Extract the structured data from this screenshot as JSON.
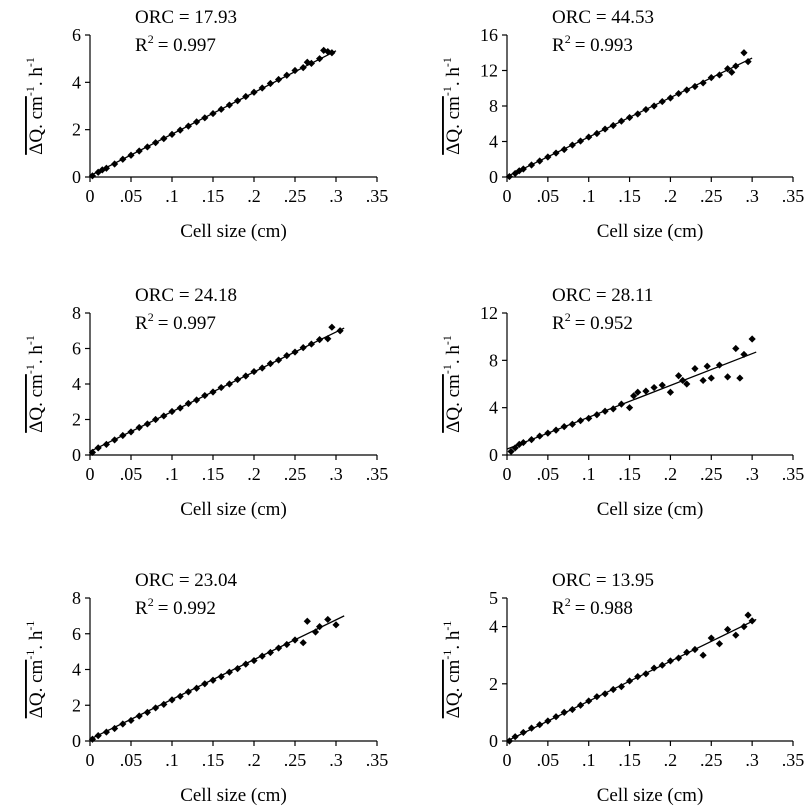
{
  "figure": {
    "xlabel": "Cell size (cm)",
    "ylabel_main": "ΔQ. cm",
    "ylabel_sup1": "-1",
    "ylabel_mid": ". h",
    "ylabel_sup2": "-1",
    "x_ticks": [
      "0",
      ".05",
      ".1",
      ".15",
      ".2",
      ".25",
      ".3",
      ".35"
    ],
    "x_tick_values": [
      0,
      0.05,
      0.1,
      0.15,
      0.2,
      0.25,
      0.3,
      0.35
    ],
    "marker": "diamond",
    "marker_color": "#000000",
    "line_color": "#000000"
  },
  "chart_data": [
    {
      "type": "scatter",
      "orc_text": "ORC = 17.93",
      "r2_text": "= 0.997",
      "xlim": [
        0,
        0.35
      ],
      "ylim": [
        0,
        6
      ],
      "y_ticks": [
        "0",
        "2",
        "4",
        "6"
      ],
      "y_tick_values": [
        0,
        2,
        4,
        6
      ],
      "fit": {
        "x": [
          0,
          0.3
        ],
        "y": [
          0.05,
          5.33
        ]
      },
      "points": [
        [
          0.003,
          0.05
        ],
        [
          0.01,
          0.2
        ],
        [
          0.015,
          0.3
        ],
        [
          0.02,
          0.37
        ],
        [
          0.03,
          0.55
        ],
        [
          0.04,
          0.75
        ],
        [
          0.05,
          0.92
        ],
        [
          0.06,
          1.1
        ],
        [
          0.07,
          1.27
        ],
        [
          0.08,
          1.45
        ],
        [
          0.09,
          1.62
        ],
        [
          0.1,
          1.8
        ],
        [
          0.11,
          1.98
        ],
        [
          0.12,
          2.15
        ],
        [
          0.13,
          2.33
        ],
        [
          0.14,
          2.5
        ],
        [
          0.15,
          2.68
        ],
        [
          0.16,
          2.86
        ],
        [
          0.17,
          3.04
        ],
        [
          0.18,
          3.22
        ],
        [
          0.19,
          3.4
        ],
        [
          0.2,
          3.58
        ],
        [
          0.21,
          3.76
        ],
        [
          0.22,
          3.95
        ],
        [
          0.23,
          4.12
        ],
        [
          0.24,
          4.3
        ],
        [
          0.25,
          4.5
        ],
        [
          0.26,
          4.62
        ],
        [
          0.265,
          4.85
        ],
        [
          0.27,
          4.8
        ],
        [
          0.28,
          5.0
        ],
        [
          0.285,
          5.35
        ],
        [
          0.29,
          5.3
        ],
        [
          0.295,
          5.25
        ]
      ]
    },
    {
      "type": "scatter",
      "orc_text": "ORC = 44.53",
      "r2_text": "= 0.993",
      "xlim": [
        0,
        0.35
      ],
      "ylim": [
        0,
        16
      ],
      "y_ticks": [
        "0",
        "4",
        "8",
        "12",
        "16"
      ],
      "y_tick_values": [
        0,
        4,
        8,
        12,
        16
      ],
      "fit": {
        "x": [
          0,
          0.3
        ],
        "y": [
          0.05,
          13.4
        ]
      },
      "points": [
        [
          0.003,
          0.05
        ],
        [
          0.01,
          0.4
        ],
        [
          0.015,
          0.7
        ],
        [
          0.02,
          0.9
        ],
        [
          0.03,
          1.35
        ],
        [
          0.04,
          1.8
        ],
        [
          0.05,
          2.25
        ],
        [
          0.06,
          2.7
        ],
        [
          0.07,
          3.1
        ],
        [
          0.08,
          3.6
        ],
        [
          0.09,
          4.05
        ],
        [
          0.1,
          4.5
        ],
        [
          0.11,
          4.9
        ],
        [
          0.12,
          5.4
        ],
        [
          0.13,
          5.8
        ],
        [
          0.14,
          6.3
        ],
        [
          0.15,
          6.7
        ],
        [
          0.16,
          7.1
        ],
        [
          0.17,
          7.6
        ],
        [
          0.18,
          8.0
        ],
        [
          0.19,
          8.5
        ],
        [
          0.2,
          8.9
        ],
        [
          0.21,
          9.4
        ],
        [
          0.22,
          9.8
        ],
        [
          0.23,
          10.2
        ],
        [
          0.24,
          10.6
        ],
        [
          0.25,
          11.2
        ],
        [
          0.26,
          11.5
        ],
        [
          0.27,
          12.2
        ],
        [
          0.275,
          11.8
        ],
        [
          0.28,
          12.5
        ],
        [
          0.29,
          14.0
        ],
        [
          0.295,
          13.0
        ]
      ]
    },
    {
      "type": "scatter",
      "orc_text": "ORC = 24.18",
      "r2_text": "= 0.997",
      "xlim": [
        0,
        0.35
      ],
      "ylim": [
        0,
        8
      ],
      "y_ticks": [
        "0",
        "2",
        "4",
        "6",
        "8"
      ],
      "y_tick_values": [
        0,
        2,
        4,
        6,
        8
      ],
      "fit": {
        "x": [
          0,
          0.31
        ],
        "y": [
          0.2,
          7.15
        ]
      },
      "points": [
        [
          0.003,
          0.15
        ],
        [
          0.01,
          0.4
        ],
        [
          0.02,
          0.6
        ],
        [
          0.03,
          0.85
        ],
        [
          0.04,
          1.1
        ],
        [
          0.05,
          1.3
        ],
        [
          0.06,
          1.55
        ],
        [
          0.07,
          1.75
        ],
        [
          0.08,
          2.0
        ],
        [
          0.09,
          2.2
        ],
        [
          0.1,
          2.45
        ],
        [
          0.11,
          2.65
        ],
        [
          0.12,
          2.9
        ],
        [
          0.13,
          3.1
        ],
        [
          0.14,
          3.35
        ],
        [
          0.15,
          3.55
        ],
        [
          0.16,
          3.8
        ],
        [
          0.17,
          4.0
        ],
        [
          0.18,
          4.25
        ],
        [
          0.19,
          4.45
        ],
        [
          0.2,
          4.7
        ],
        [
          0.21,
          4.9
        ],
        [
          0.22,
          5.15
        ],
        [
          0.23,
          5.35
        ],
        [
          0.24,
          5.6
        ],
        [
          0.25,
          5.8
        ],
        [
          0.26,
          6.05
        ],
        [
          0.27,
          6.25
        ],
        [
          0.28,
          6.5
        ],
        [
          0.29,
          6.55
        ],
        [
          0.295,
          7.2
        ],
        [
          0.305,
          7.0
        ]
      ]
    },
    {
      "type": "scatter",
      "orc_text": "ORC = 28.11",
      "r2_text": "= 0.952",
      "xlim": [
        0,
        0.35
      ],
      "ylim": [
        0,
        12
      ],
      "y_ticks": [
        "0",
        "4",
        "8",
        "12"
      ],
      "y_tick_values": [
        0,
        4,
        8,
        12
      ],
      "fit": {
        "x": [
          0,
          0.305
        ],
        "y": [
          0.5,
          8.7
        ]
      },
      "points": [
        [
          0.005,
          0.3
        ],
        [
          0.01,
          0.6
        ],
        [
          0.015,
          0.9
        ],
        [
          0.02,
          1.05
        ],
        [
          0.03,
          1.3
        ],
        [
          0.04,
          1.6
        ],
        [
          0.05,
          1.85
        ],
        [
          0.06,
          2.1
        ],
        [
          0.07,
          2.4
        ],
        [
          0.08,
          2.6
        ],
        [
          0.09,
          2.9
        ],
        [
          0.1,
          3.1
        ],
        [
          0.11,
          3.4
        ],
        [
          0.12,
          3.7
        ],
        [
          0.13,
          3.9
        ],
        [
          0.14,
          4.3
        ],
        [
          0.15,
          4.0
        ],
        [
          0.155,
          5.0
        ],
        [
          0.16,
          5.3
        ],
        [
          0.17,
          5.4
        ],
        [
          0.18,
          5.7
        ],
        [
          0.19,
          5.9
        ],
        [
          0.2,
          5.3
        ],
        [
          0.21,
          6.7
        ],
        [
          0.215,
          6.3
        ],
        [
          0.22,
          6.0
        ],
        [
          0.23,
          7.3
        ],
        [
          0.24,
          6.3
        ],
        [
          0.245,
          7.5
        ],
        [
          0.25,
          6.5
        ],
        [
          0.26,
          7.6
        ],
        [
          0.27,
          6.6
        ],
        [
          0.28,
          9.0
        ],
        [
          0.285,
          6.5
        ],
        [
          0.29,
          8.5
        ],
        [
          0.3,
          9.8
        ]
      ]
    },
    {
      "type": "scatter",
      "orc_text": "ORC = 23.04",
      "r2_text": "= 0.992",
      "xlim": [
        0,
        0.35
      ],
      "ylim": [
        0,
        8
      ],
      "y_ticks": [
        "0",
        "2",
        "4",
        "6",
        "8"
      ],
      "y_tick_values": [
        0,
        2,
        4,
        6,
        8
      ],
      "fit": {
        "x": [
          0,
          0.31
        ],
        "y": [
          0.1,
          7.0
        ]
      },
      "points": [
        [
          0.003,
          0.1
        ],
        [
          0.01,
          0.3
        ],
        [
          0.02,
          0.5
        ],
        [
          0.03,
          0.7
        ],
        [
          0.04,
          0.95
        ],
        [
          0.05,
          1.15
        ],
        [
          0.06,
          1.4
        ],
        [
          0.07,
          1.6
        ],
        [
          0.08,
          1.85
        ],
        [
          0.09,
          2.05
        ],
        [
          0.1,
          2.3
        ],
        [
          0.11,
          2.5
        ],
        [
          0.12,
          2.75
        ],
        [
          0.13,
          2.95
        ],
        [
          0.14,
          3.2
        ],
        [
          0.15,
          3.4
        ],
        [
          0.16,
          3.6
        ],
        [
          0.17,
          3.85
        ],
        [
          0.18,
          4.05
        ],
        [
          0.19,
          4.3
        ],
        [
          0.2,
          4.5
        ],
        [
          0.21,
          4.75
        ],
        [
          0.22,
          4.95
        ],
        [
          0.23,
          5.2
        ],
        [
          0.24,
          5.4
        ],
        [
          0.25,
          5.65
        ],
        [
          0.26,
          5.5
        ],
        [
          0.265,
          6.7
        ],
        [
          0.275,
          6.1
        ],
        [
          0.28,
          6.4
        ],
        [
          0.29,
          6.8
        ],
        [
          0.3,
          6.5
        ]
      ]
    },
    {
      "type": "scatter",
      "orc_text": "ORC = 13.95",
      "r2_text": "= 0.988",
      "xlim": [
        0,
        0.35
      ],
      "ylim": [
        0,
        5
      ],
      "y_ticks": [
        "0",
        "2",
        "4",
        "5"
      ],
      "y_tick_values": [
        0,
        2,
        4,
        5
      ],
      "fit": {
        "x": [
          0,
          0.305
        ],
        "y": [
          0.0,
          4.25
        ]
      },
      "points": [
        [
          0.003,
          0.0
        ],
        [
          0.01,
          0.15
        ],
        [
          0.02,
          0.3
        ],
        [
          0.03,
          0.45
        ],
        [
          0.04,
          0.57
        ],
        [
          0.05,
          0.7
        ],
        [
          0.06,
          0.85
        ],
        [
          0.07,
          1.0
        ],
        [
          0.08,
          1.1
        ],
        [
          0.09,
          1.25
        ],
        [
          0.1,
          1.4
        ],
        [
          0.11,
          1.55
        ],
        [
          0.12,
          1.65
        ],
        [
          0.13,
          1.8
        ],
        [
          0.14,
          1.9
        ],
        [
          0.15,
          2.1
        ],
        [
          0.16,
          2.25
        ],
        [
          0.17,
          2.35
        ],
        [
          0.18,
          2.55
        ],
        [
          0.19,
          2.65
        ],
        [
          0.2,
          2.8
        ],
        [
          0.21,
          2.9
        ],
        [
          0.22,
          3.1
        ],
        [
          0.23,
          3.2
        ],
        [
          0.24,
          3.0
        ],
        [
          0.25,
          3.6
        ],
        [
          0.26,
          3.4
        ],
        [
          0.27,
          3.9
        ],
        [
          0.28,
          3.7
        ],
        [
          0.29,
          4.0
        ],
        [
          0.295,
          4.4
        ],
        [
          0.3,
          4.2
        ]
      ]
    }
  ]
}
